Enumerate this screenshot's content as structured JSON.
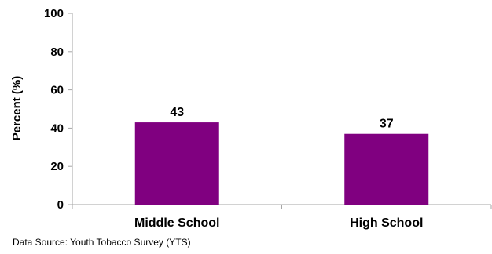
{
  "chart_data": {
    "type": "bar",
    "categories": [
      "Middle School",
      "High School"
    ],
    "values": [
      43,
      37
    ],
    "data_labels": [
      "43",
      "37"
    ],
    "xlabel": "",
    "ylabel": "Percent (%)",
    "ylim": [
      0,
      100
    ],
    "yticks": [
      "0",
      "20",
      "40",
      "60",
      "80",
      "100"
    ],
    "grid": false,
    "legend": "none",
    "bar_color": "#800080"
  },
  "footer": {
    "source": "Data Source: Youth Tobacco Survey (YTS)"
  }
}
